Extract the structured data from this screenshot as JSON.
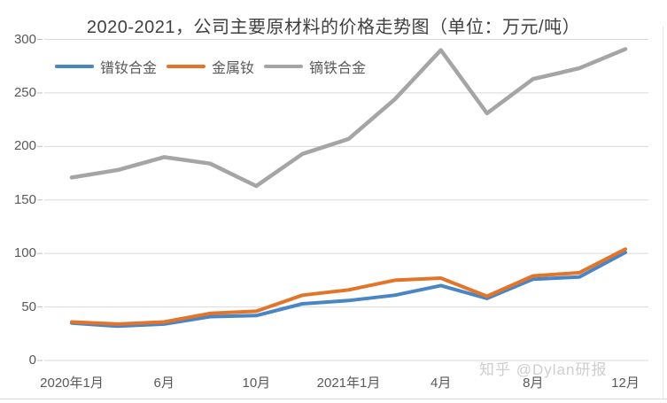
{
  "chart_data": {
    "type": "line",
    "title": "2020-2021，公司主要原材料的价格走势图（单位：万元/吨）",
    "xlabel": "",
    "ylabel": "",
    "ylim": [
      0,
      300
    ],
    "y_ticks": [
      0,
      50,
      100,
      150,
      200,
      250,
      300
    ],
    "grid": true,
    "legend_position": "top-left",
    "x_tick_labels": [
      {
        "label": "2020年1月",
        "index": 0
      },
      {
        "label": "6月",
        "index": 2
      },
      {
        "label": "10月",
        "index": 4
      },
      {
        "label": "2021年1月",
        "index": 6
      },
      {
        "label": "4月",
        "index": 8
      },
      {
        "label": "8月",
        "index": 10
      },
      {
        "label": "12月",
        "index": 12
      }
    ],
    "series": [
      {
        "name": "镨钕合金",
        "color": "#4a86c6",
        "values": [
          35,
          32,
          34,
          41,
          42,
          53,
          56,
          61,
          70,
          58,
          76,
          78,
          101
        ]
      },
      {
        "name": "金属钕",
        "color": "#e27529",
        "values": [
          36,
          34,
          36,
          44,
          46,
          61,
          66,
          75,
          77,
          60,
          79,
          82,
          104
        ]
      },
      {
        "name": "镝铁合金",
        "color": "#a5a5a5",
        "values": [
          171,
          178,
          190,
          184,
          163,
          193,
          207,
          244,
          290,
          231,
          263,
          273,
          291
        ]
      }
    ],
    "colors": {
      "gridline": "#d9d9d9",
      "tick": "#bfbfbf",
      "axis_text": "#595959",
      "frame": "#e2e2e2"
    }
  },
  "watermark": {
    "text": "知乎 @Dylan研报"
  }
}
